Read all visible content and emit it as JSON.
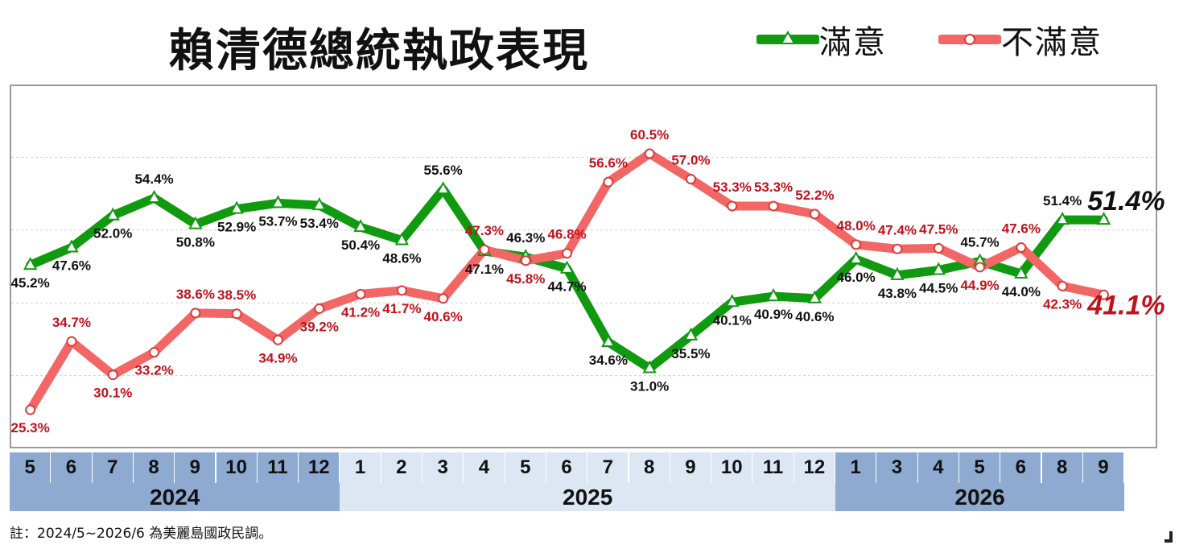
{
  "title": "賴清德總統執政表現",
  "note": "註：2024/5~2026/6 為美麗島國政民調。",
  "colors": {
    "satisfied": "#0f9a0f",
    "dissatisfied": "#f26666",
    "satisfied_label": "#111111",
    "dissatisfied_label": "#c0121a",
    "axis_cell_dark": "#8eaad0",
    "axis_cell_light": "#dde7f3",
    "grid": "#cfcfcf"
  },
  "legend": [
    {
      "name": "滿意",
      "marker": "triangle"
    },
    {
      "name": "不滿意",
      "marker": "circle"
    }
  ],
  "chart_data": {
    "type": "line",
    "title": "賴清德總統執政表現",
    "categories": [
      "2024/5",
      "2024/6",
      "2024/7",
      "2024/8",
      "2024/9",
      "2024/10",
      "2024/11",
      "2024/12",
      "2025/1",
      "2025/2",
      "2025/3",
      "2025/4",
      "2025/5",
      "2025/6",
      "2025/7",
      "2025/8",
      "2025/9",
      "2025/10",
      "2025/11",
      "2025/12",
      "2026/1",
      "2026/3",
      "2026/4",
      "2026/5",
      "2026/6",
      "2026/8",
      "2026/9"
    ],
    "x_tick_labels": [
      "5",
      "6",
      "7",
      "8",
      "9",
      "10",
      "11",
      "12",
      "1",
      "2",
      "3",
      "4",
      "5",
      "6",
      "7",
      "8",
      "9",
      "10",
      "11",
      "12",
      "1",
      "3",
      "4",
      "5",
      "6",
      "8",
      "9"
    ],
    "year_groups": [
      {
        "label": "2024",
        "count": 8,
        "shade": "dark"
      },
      {
        "label": "2025",
        "count": 12,
        "shade": "light"
      },
      {
        "label": "2026",
        "count": 7,
        "shade": "dark"
      }
    ],
    "series": [
      {
        "name": "滿意",
        "marker": "triangle",
        "values": [
          45.2,
          47.6,
          52.0,
          54.4,
          50.8,
          52.9,
          53.7,
          53.4,
          50.4,
          48.6,
          55.6,
          47.1,
          46.3,
          44.7,
          34.6,
          31.0,
          35.5,
          40.1,
          40.9,
          40.6,
          46.0,
          43.8,
          44.5,
          45.7,
          44.0,
          51.4,
          51.4
        ],
        "labels": [
          "45.2%",
          "47.6%",
          "52.0%",
          "54.4%",
          "50.8%",
          "52.9%",
          "53.7%",
          "53.4%",
          "50.4%",
          "48.6%",
          "55.6%",
          "47.1%",
          "46.3%",
          "44.7%",
          "34.6%",
          "31.0%",
          "35.5%",
          "40.1%",
          "40.9%",
          "40.6%",
          "46.0%",
          "43.8%",
          "44.5%",
          "45.7%",
          "44.0%",
          "51.4%",
          "51.4%"
        ]
      },
      {
        "name": "不滿意",
        "marker": "circle",
        "values": [
          25.3,
          34.7,
          30.1,
          33.2,
          38.6,
          38.5,
          34.9,
          39.2,
          41.2,
          41.7,
          40.6,
          47.3,
          45.8,
          46.8,
          56.6,
          60.5,
          57.0,
          53.3,
          53.3,
          52.2,
          48.0,
          47.4,
          47.5,
          44.9,
          47.6,
          42.3,
          41.1
        ],
        "labels": [
          "25.3%",
          "34.7%",
          "30.1%",
          "33.2%",
          "38.6%",
          "38.5%",
          "34.9%",
          "39.2%",
          "41.2%",
          "41.7%",
          "40.6%",
          "47.3%",
          "45.8%",
          "46.8%",
          "56.6%",
          "60.5%",
          "57.0%",
          "53.3%",
          "53.3%",
          "52.2%",
          "48.0%",
          "47.4%",
          "47.5%",
          "44.9%",
          "47.6%",
          "42.3%",
          "41.1%"
        ]
      }
    ],
    "ylim": [
      20,
      70
    ],
    "grid": true,
    "legend_position": "top-right"
  }
}
